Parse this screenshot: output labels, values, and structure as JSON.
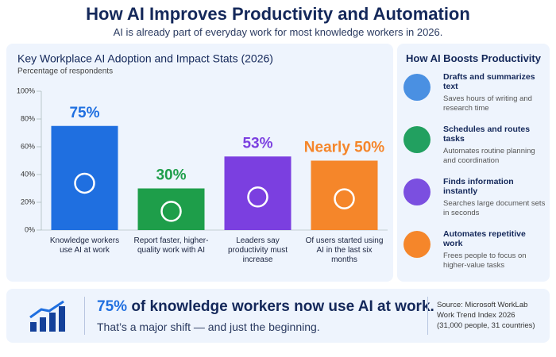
{
  "header": {
    "title": "How AI Improves Productivity and Automation",
    "subtitle": "AI is already part of everyday work for most knowledge workers in 2026."
  },
  "chart_data": {
    "type": "bar",
    "title": "Key Workplace AI Adoption and Impact Stats (2026)",
    "subtitle": "Percentage of respondents",
    "categories": [
      "Knowledge workers use AI at work",
      "Report faster, higher-quality work with AI",
      "Leaders say productivity must increase",
      "Of users started using AI in the last six months"
    ],
    "values": [
      75,
      30,
      53,
      50
    ],
    "value_labels": [
      "75%",
      "30%",
      "53%",
      "Nearly 50%"
    ],
    "colors": [
      "#1f6fe0",
      "#1e9e4a",
      "#7b3fe0",
      "#f5862a"
    ],
    "ylim": [
      0,
      100
    ],
    "yticks": [
      {
        "value": 0,
        "label": "0%"
      },
      {
        "value": 20,
        "label": "20%"
      },
      {
        "value": 40,
        "label": "40%"
      },
      {
        "value": 60,
        "label": "60%"
      },
      {
        "value": 80,
        "label": "80%"
      },
      {
        "value": 100,
        "label": "100%"
      }
    ],
    "grid": false
  },
  "sidebar": {
    "title": "How AI Boosts Productivity",
    "items": [
      {
        "title": "Drafts and summarizes text",
        "text": "Saves hours of writing and research time",
        "color": "#4a90e2"
      },
      {
        "title": "Schedules and routes tasks",
        "text": "Automates routine planning and coordination",
        "color": "#22a060"
      },
      {
        "title": "Finds information instantly",
        "text": "Searches large document sets in seconds",
        "color": "#7b4fe0"
      },
      {
        "title": "Automates repetitive work",
        "text": "Frees people to focus on higher-value tasks",
        "color": "#f5862a"
      }
    ]
  },
  "banner": {
    "highlight": "75%",
    "headline": "of knowledge workers now use AI at work.",
    "subline": "That’s a major shift — and just the beginning.",
    "source": "Source: Microsoft WorkLab Work Trend Index 2026 (31,000 people, 31 countries)"
  }
}
